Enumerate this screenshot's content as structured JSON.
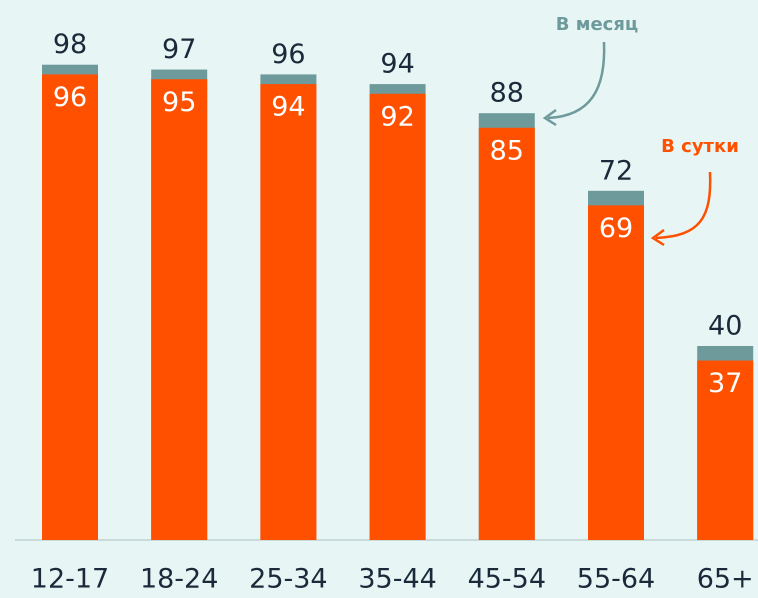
{
  "chart_data": {
    "type": "bar",
    "categories": [
      "12-17",
      "18-24",
      "25-34",
      "35-44",
      "45-54",
      "55-64",
      "65+"
    ],
    "series": [
      {
        "name": "В месяц",
        "color": "#6e9a9c",
        "values": [
          98,
          97,
          96,
          94,
          88,
          72,
          40
        ]
      },
      {
        "name": "В сутки",
        "color": "#ff5000",
        "values": [
          96,
          95,
          94,
          92,
          85,
          69,
          37
        ]
      }
    ],
    "ylim": [
      0,
      100
    ]
  }
}
